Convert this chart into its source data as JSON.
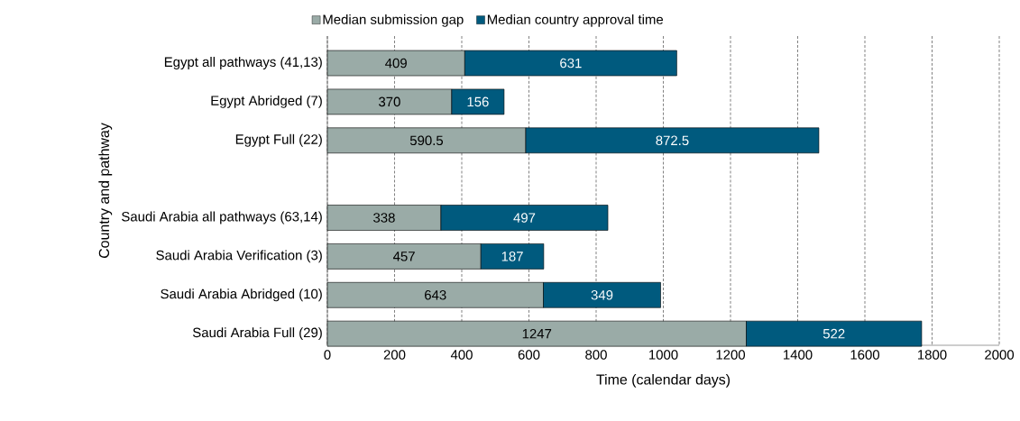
{
  "chart_data": {
    "type": "bar",
    "orientation": "horizontal",
    "stacked": true,
    "categories": [
      "Egypt all pathways (41,13)",
      "Egypt Abridged (7)",
      "Egypt Full (22)",
      null,
      "Saudi Arabia all pathways (63,14)",
      "Saudi Arabia Verification (3)",
      "Saudi Arabia Abridged (10)",
      "Saudi Arabia Full (29)"
    ],
    "series": [
      {
        "name": "Median submission gap",
        "color": "#9aaba7",
        "values": [
          409,
          370,
          590.5,
          null,
          338,
          457,
          643,
          1247
        ]
      },
      {
        "name": "Median country approval time",
        "color": "#005a7e",
        "values": [
          631,
          156,
          872.5,
          null,
          497,
          187,
          349,
          522
        ]
      }
    ],
    "xlim": [
      0,
      2000
    ],
    "xticks": [
      0,
      200,
      400,
      600,
      800,
      1000,
      1200,
      1400,
      1600,
      1800,
      2000
    ],
    "xlabel": "Time (calendar days)",
    "ylabel": "Country and pathway",
    "grid": "x",
    "legend": "top",
    "data_labels": true
  }
}
